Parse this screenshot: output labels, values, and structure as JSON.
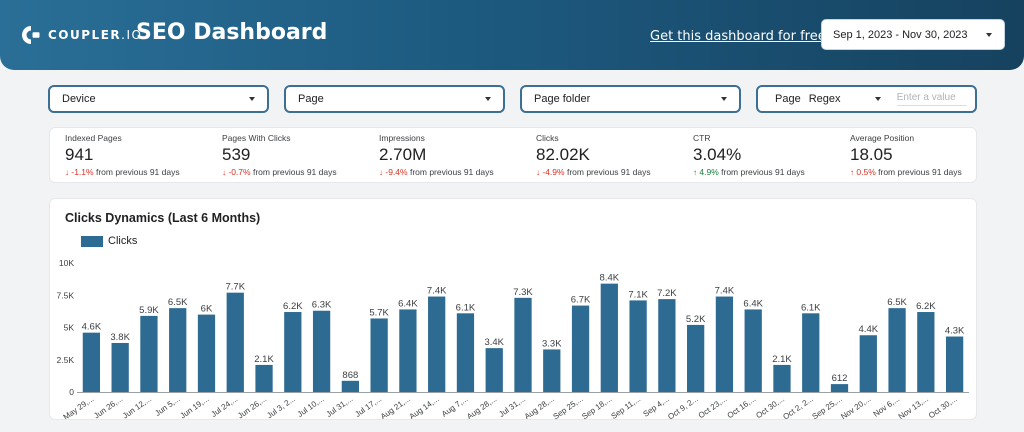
{
  "header": {
    "logo_text": "COUPLER",
    "logo_suffix": ".IO",
    "title": "SEO Dashboard",
    "cta_link": "Get this dashboard for free",
    "date_range": "Sep 1, 2023 - Nov 30, 2023"
  },
  "filters": {
    "device": "Device",
    "page": "Page",
    "page_folder": "Page folder",
    "page_regex_label": "Page",
    "page_regex_mode": "Regex",
    "page_regex_placeholder": "Enter a value"
  },
  "kpis": [
    {
      "label": "Indexed Pages",
      "value": "941",
      "change": "-1.1%",
      "direction": "down",
      "suffix": "from previous 91 days"
    },
    {
      "label": "Pages With Clicks",
      "value": "539",
      "change": "-0.7%",
      "direction": "down",
      "suffix": "from previous 91 days"
    },
    {
      "label": "Impressions",
      "value": "2.70M",
      "change": "-9.4%",
      "direction": "down",
      "suffix": "from previous 91 days"
    },
    {
      "label": "Clicks",
      "value": "82.02K",
      "change": "-4.9%",
      "direction": "down",
      "suffix": "from previous 91 days"
    },
    {
      "label": "CTR",
      "value": "3.04%",
      "change": "4.9%",
      "direction": "up",
      "suffix": "from previous 91 days"
    },
    {
      "label": "Average Position",
      "value": "18.05",
      "change": "0.5%",
      "direction": "up_red",
      "suffix": "from previous 91 days"
    }
  ],
  "colors": {
    "bar": "#2e6b93",
    "negative": "#d93025",
    "positive": "#188038",
    "header_start": "#2a6f97",
    "header_end": "#16425f"
  },
  "chart_data": {
    "type": "bar",
    "title": "Clicks Dynamics (Last 6 Months)",
    "series": [
      {
        "name": "Clicks",
        "values": [
          4600,
          3800,
          5900,
          6500,
          6000,
          7700,
          2100,
          6200,
          6300,
          868,
          5700,
          6400,
          7400,
          6100,
          3400,
          7300,
          3300,
          6700,
          8400,
          7100,
          7200,
          5200,
          7400,
          6400,
          2100,
          6100,
          612,
          4400,
          6500,
          6200,
          4300
        ]
      }
    ],
    "data_labels": [
      "4.6K",
      "3.8K",
      "5.9K",
      "6.5K",
      "6K",
      "7.7K",
      "2.1K",
      "6.2K",
      "6.3K",
      "868",
      "5.7K",
      "6.4K",
      "7.4K",
      "6.1K",
      "3.4K",
      "7.3K",
      "3.3K",
      "6.7K",
      "8.4K",
      "7.1K",
      "7.2K",
      "5.2K",
      "7.4K",
      "6.4K",
      "2.1K",
      "6.1K",
      "612",
      "4.4K",
      "6.5K",
      "6.2K",
      "4.3K"
    ],
    "categories": [
      "May 29,...",
      "Jun 26,...",
      "Jun 12,...",
      "Jun 5,...",
      "Jun 19,...",
      "Jul 24,...",
      "Jun 26,...",
      "Jul 3, 2...",
      "Jul 10,...",
      "Jul 31,...",
      "Jul 17,...",
      "Aug 21,...",
      "Aug 14,...",
      "Aug 7,...",
      "Aug 28,...",
      "Jul 31,...",
      "Aug 28,...",
      "Sep 25,...",
      "Sep 18,...",
      "Sep 11,...",
      "Sep 4,...",
      "Oct 9, 2...",
      "Oct 23,...",
      "Oct 16,...",
      "Oct 30,...",
      "Oct 2, 2...",
      "Sep 25,...",
      "Nov 20,...",
      "Nov 6,...",
      "Nov 13,...",
      "Oct 30,..."
    ],
    "yticks": [
      "0",
      "2.5K",
      "5K",
      "7.5K",
      "10K"
    ],
    "ylim": [
      0,
      10000
    ],
    "legend": "top-left",
    "grid": false
  }
}
